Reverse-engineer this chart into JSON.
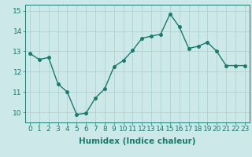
{
  "x": [
    0,
    1,
    2,
    3,
    4,
    5,
    6,
    7,
    8,
    9,
    10,
    11,
    12,
    13,
    14,
    15,
    16,
    17,
    18,
    19,
    20,
    21,
    22,
    23
  ],
  "y": [
    12.9,
    12.6,
    12.7,
    11.4,
    11.0,
    9.9,
    9.95,
    10.7,
    11.15,
    12.25,
    12.55,
    13.05,
    13.65,
    13.75,
    13.85,
    14.85,
    14.2,
    13.15,
    13.25,
    13.45,
    13.0,
    12.3,
    12.3,
    12.3
  ],
  "line_color": "#1a7a6e",
  "marker_color": "#1a7a6e",
  "bg_color": "#cce8e8",
  "grid_color": "#aacece",
  "xlabel": "Humidex (Indice chaleur)",
  "xlim": [
    -0.5,
    23.5
  ],
  "ylim": [
    9.5,
    15.3
  ],
  "yticks": [
    10,
    11,
    12,
    13,
    14,
    15
  ],
  "xticks": [
    0,
    1,
    2,
    3,
    4,
    5,
    6,
    7,
    8,
    9,
    10,
    11,
    12,
    13,
    14,
    15,
    16,
    17,
    18,
    19,
    20,
    21,
    22,
    23
  ],
  "xlabel_fontsize": 7.5,
  "tick_fontsize": 6.5,
  "line_width": 1.0,
  "marker_size": 2.5
}
